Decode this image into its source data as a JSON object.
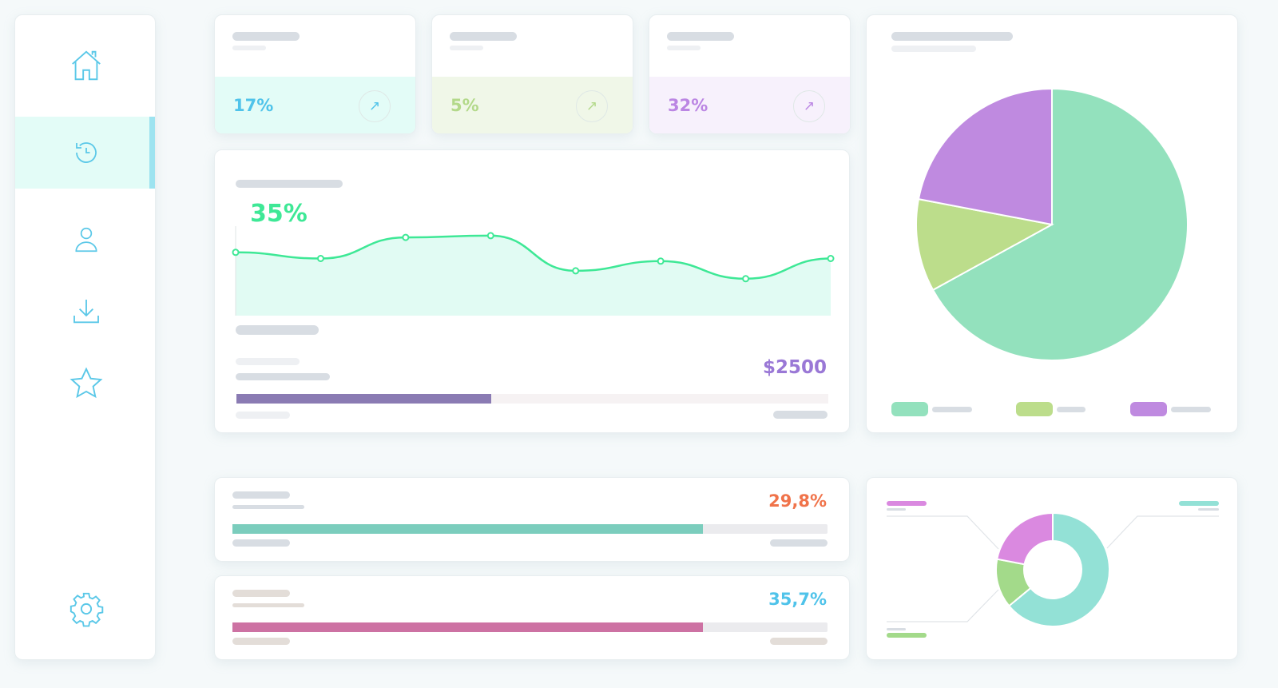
{
  "sidebar": {
    "items": [
      {
        "icon": "home-icon"
      },
      {
        "icon": "history-icon",
        "active": true
      },
      {
        "icon": "user-icon"
      },
      {
        "icon": "download-icon"
      },
      {
        "icon": "star-icon"
      },
      {
        "icon": "gear-icon"
      }
    ],
    "accent": "#5bc8e8"
  },
  "stats": [
    {
      "value": "17%",
      "color": "#4fc3ea",
      "bg": "#e3fcf7",
      "icon": "arrow-up-right-icon"
    },
    {
      "value": "5%",
      "color": "#b3d98a",
      "bg": "#f0f7e8",
      "icon": "arrow-up-right-icon"
    },
    {
      "value": "32%",
      "color": "#bb86e3",
      "bg": "#f7f1fc",
      "icon": "arrow-up-right-icon"
    }
  ],
  "trend": {
    "value": "35%",
    "color": "#3ee896",
    "amount": "$2500",
    "amount_color": "#9a78d6",
    "progress": 0.43,
    "progress_color": "#8a7bb3"
  },
  "chart_data": [
    {
      "type": "area",
      "values": [
        72,
        65,
        89,
        91,
        51,
        62,
        42,
        65
      ],
      "color": "#3ee896",
      "fill": "#e1fbf3"
    },
    {
      "type": "pie",
      "values": [
        67,
        11,
        22
      ],
      "colors": [
        "#93e1bd",
        "#bcdd8b",
        "#bf8ae0"
      ]
    },
    {
      "type": "pie",
      "donut": true,
      "values": [
        64,
        14,
        22
      ],
      "colors": [
        "#93e1d6",
        "#a3da8a",
        "#da89e0"
      ]
    }
  ],
  "progress": [
    {
      "value": "29,8%",
      "color": "#f0734a",
      "fill": 0.79,
      "bar_color": "#7bcdbd"
    },
    {
      "value": "35,7%",
      "color": "#4fc3ea",
      "fill": 0.79,
      "bar_color": "#cd72a3"
    }
  ]
}
